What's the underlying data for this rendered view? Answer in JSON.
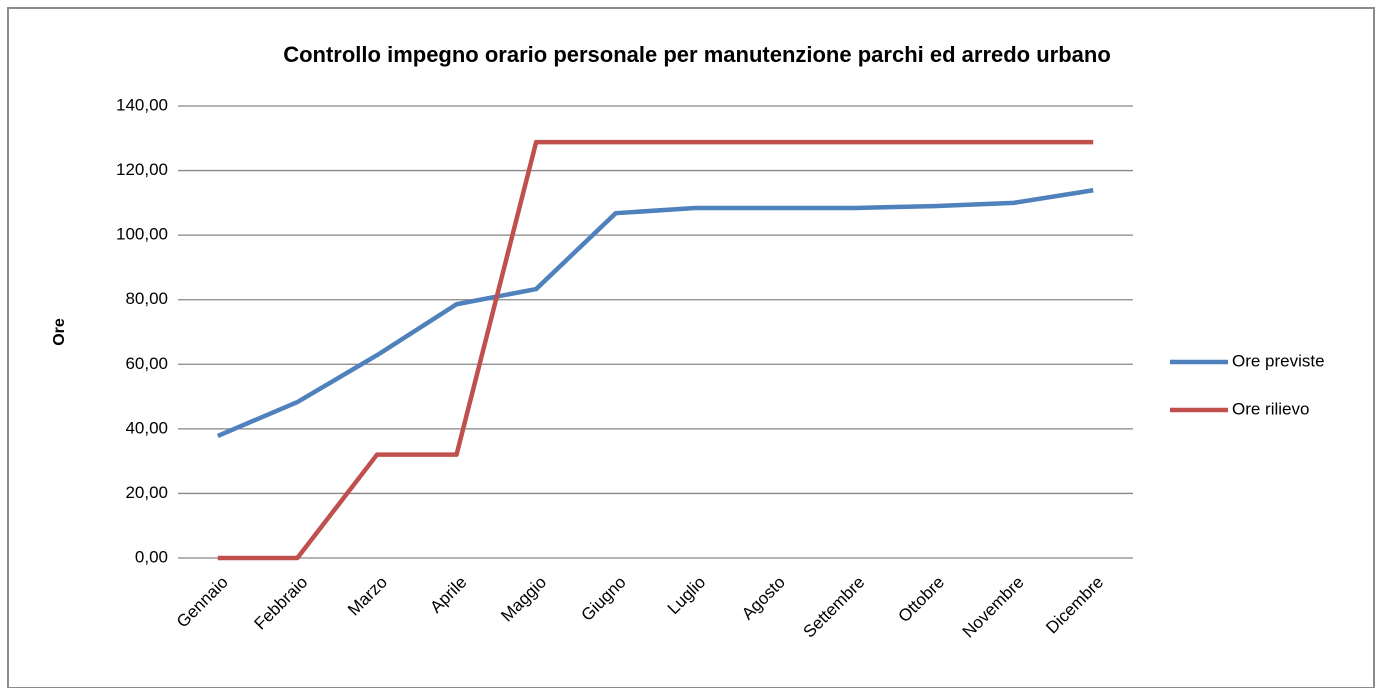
{
  "chart_data": {
    "type": "line",
    "title": "Controllo impegno orario personale per manutenzione parchi ed arredo urbano",
    "y_label": "Ore",
    "categories": [
      "Gennaio",
      "Febbraio",
      "Marzo",
      "Aprile",
      "Maggio",
      "Giugno",
      "Luglio",
      "Agosto",
      "Settembre",
      "Ottobre",
      "Novembre",
      "Dicembre"
    ],
    "series": [
      {
        "name": "Ore previste",
        "color": "#4f81bd",
        "values": [
          37.8,
          48.3,
          62.8,
          78.6,
          83.3,
          106.8,
          108.4,
          108.4,
          108.4,
          109,
          110,
          113.9
        ]
      },
      {
        "name": "Ore rilievo",
        "color": "#c0504d",
        "values": [
          0,
          0,
          32,
          32,
          128.8,
          128.8,
          128.8,
          128.8,
          128.8,
          128.8,
          128.8,
          128.8
        ]
      }
    ],
    "ylim": [
      0,
      140
    ],
    "yticks": [
      {
        "value": 0,
        "label": "0,00"
      },
      {
        "value": 20,
        "label": "20,00"
      },
      {
        "value": 40,
        "label": "40,00"
      },
      {
        "value": 60,
        "label": "60,00"
      },
      {
        "value": 80,
        "label": "80,00"
      },
      {
        "value": 100,
        "label": "100,00"
      },
      {
        "value": 120,
        "label": "120,00"
      },
      {
        "value": 140,
        "label": "140,00"
      }
    ],
    "grid": true,
    "legend": "right"
  }
}
